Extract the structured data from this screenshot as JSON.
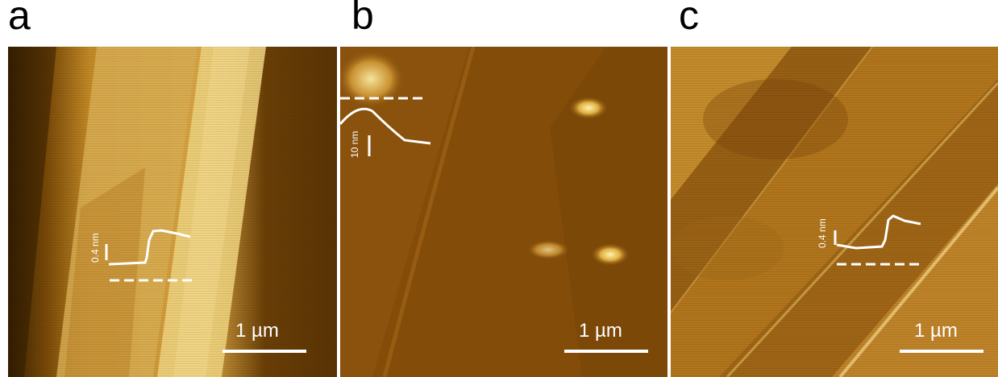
{
  "panels": [
    {
      "letter": "a",
      "scale_label": "1 µm",
      "height_label": "0.4 nm"
    },
    {
      "letter": "b",
      "scale_label": "1 µm",
      "height_label": "10 nm"
    },
    {
      "letter": "c",
      "scale_label": "1 µm",
      "height_label": "0.4 nm"
    }
  ],
  "colors": {
    "afm_dark": "#3a2200",
    "afm_mid": "#a8680f",
    "afm_light": "#f2d27a",
    "trace": "#ffffff"
  }
}
